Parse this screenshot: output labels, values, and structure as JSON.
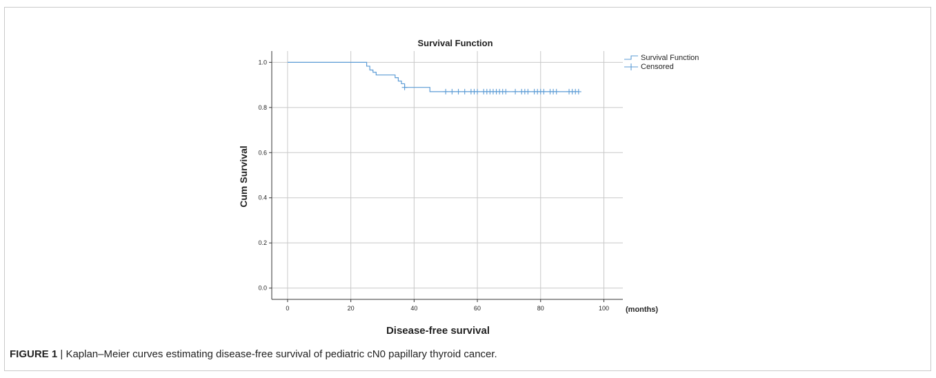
{
  "figure": {
    "label": "FIGURE 1",
    "separator": "|",
    "caption": "Kaplan–Meier curves estimating disease-free survival of pediatric cN0 papillary thyroid cancer."
  },
  "chart_data": {
    "type": "line",
    "title": "Survival Function",
    "xlabel": "Disease-free survival",
    "x_unit_label": "(months)",
    "ylabel": "Cum Survival",
    "xlim": [
      -5,
      106
    ],
    "ylim": [
      -0.05,
      1.05
    ],
    "x_ticks": [
      0,
      20,
      40,
      60,
      80,
      100
    ],
    "y_ticks": [
      0.0,
      0.2,
      0.4,
      0.6,
      0.8,
      1.0
    ],
    "x_tick_labels": [
      "0",
      "20",
      "40",
      "60",
      "80",
      "100"
    ],
    "y_tick_labels": [
      "0.0",
      "0.2",
      "0.4",
      "0.6",
      "0.8",
      "1.0"
    ],
    "grid": true,
    "legend_position": "top-right",
    "series": [
      {
        "name": "Survival Function",
        "step": true,
        "color": "#5b9bd5",
        "x": [
          0,
          25,
          26,
          27,
          28,
          34,
          35,
          36,
          37,
          45,
          92
        ],
        "y": [
          1.0,
          0.983,
          0.966,
          0.956,
          0.944,
          0.932,
          0.917,
          0.905,
          0.889,
          0.87,
          0.87
        ]
      },
      {
        "name": "Censored",
        "marker": "+",
        "color": "#5b9bd5",
        "x": [
          37,
          50,
          52,
          54,
          56,
          58,
          59,
          60,
          62,
          63,
          64,
          65,
          66,
          67,
          68,
          69,
          72,
          74,
          75,
          76,
          78,
          79,
          80,
          81,
          83,
          84,
          85,
          89,
          90,
          91,
          92
        ],
        "y": [
          0.889,
          0.87,
          0.87,
          0.87,
          0.87,
          0.87,
          0.87,
          0.87,
          0.87,
          0.87,
          0.87,
          0.87,
          0.87,
          0.87,
          0.87,
          0.87,
          0.87,
          0.87,
          0.87,
          0.87,
          0.87,
          0.87,
          0.87,
          0.87,
          0.87,
          0.87,
          0.87,
          0.87,
          0.87,
          0.87,
          0.87
        ]
      }
    ]
  }
}
